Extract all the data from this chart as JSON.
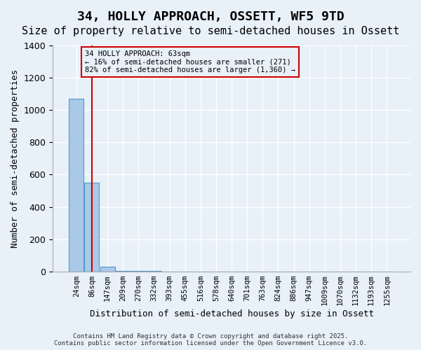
{
  "title": "34, HOLLY APPROACH, OSSETT, WF5 9TD",
  "subtitle": "Size of property relative to semi-detached houses in Ossett",
  "xlabel": "Distribution of semi-detached houses by size in Ossett",
  "ylabel": "Number of semi-detached properties",
  "bin_labels": [
    "24sqm",
    "86sqm",
    "147sqm",
    "209sqm",
    "270sqm",
    "332sqm",
    "393sqm",
    "455sqm",
    "516sqm",
    "578sqm",
    "640sqm",
    "701sqm",
    "763sqm",
    "824sqm",
    "886sqm",
    "947sqm",
    "1009sqm",
    "1070sqm",
    "1132sqm",
    "1193sqm",
    "1255sqm"
  ],
  "bar_values": [
    1070,
    550,
    30,
    5,
    3,
    2,
    1,
    1,
    0,
    0,
    0,
    0,
    0,
    0,
    0,
    0,
    0,
    0,
    0,
    0,
    0
  ],
  "bar_color": "#aac8e8",
  "bar_edge_color": "#5599cc",
  "background_color": "#e8f0f8",
  "grid_color": "#ffffff",
  "ylim": [
    0,
    1400
  ],
  "yticks": [
    0,
    200,
    400,
    600,
    800,
    1000,
    1200,
    1400
  ],
  "property_bin_index": 1,
  "red_line_color": "#cc0000",
  "annotation_text": "34 HOLLY APPROACH: 63sqm\n← 16% of semi-detached houses are smaller (271)\n82% of semi-detached houses are larger (1,360) →",
  "annotation_box_color": "#cc0000",
  "footer_line1": "Contains HM Land Registry data © Crown copyright and database right 2025.",
  "footer_line2": "Contains public sector information licensed under the Open Government Licence v3.0.",
  "title_fontsize": 13,
  "subtitle_fontsize": 11
}
